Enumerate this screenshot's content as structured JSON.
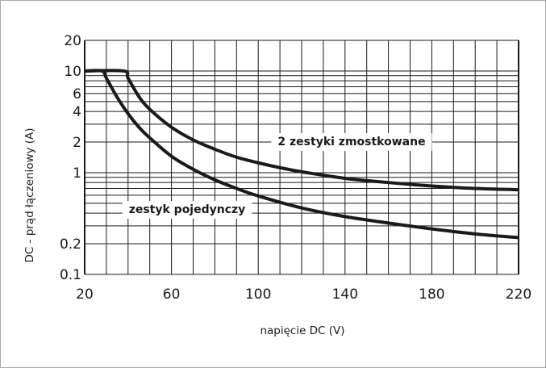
{
  "chart_data": {
    "type": "line",
    "title": "",
    "xlabel": "napięcie DC (V)",
    "ylabel": "DC - prąd łączeniowy (A)",
    "xlim": [
      20,
      220
    ],
    "ylim": [
      0.1,
      20
    ],
    "y_scale": "log",
    "grid": true,
    "x_ticks": [
      20,
      60,
      100,
      140,
      180,
      220
    ],
    "y_ticks": [
      0.1,
      0.2,
      1,
      2,
      4,
      6,
      10,
      20
    ],
    "x_tick_labels": [
      "20",
      "60",
      "100",
      "140",
      "180",
      "220"
    ],
    "y_tick_labels": [
      "0.1",
      "0.2",
      "1",
      "2",
      "4",
      "6",
      "10",
      "20"
    ],
    "series": [
      {
        "name": "zestyk pojedynczy",
        "x": [
          20,
          28,
          30,
          35,
          40,
          45,
          50,
          60,
          70,
          80,
          90,
          100,
          120,
          140,
          160,
          180,
          200,
          220
        ],
        "y": [
          10,
          10,
          8.5,
          5.5,
          3.8,
          2.8,
          2.2,
          1.45,
          1.08,
          0.85,
          0.7,
          0.59,
          0.45,
          0.37,
          0.32,
          0.28,
          0.25,
          0.23
        ]
      },
      {
        "name": "2 zestyki zmostkowane",
        "x": [
          20,
          38,
          40,
          45,
          50,
          60,
          70,
          80,
          90,
          100,
          110,
          120,
          140,
          160,
          180,
          200,
          220
        ],
        "y": [
          10,
          10,
          8.5,
          5.6,
          4.2,
          2.8,
          2.1,
          1.7,
          1.42,
          1.25,
          1.12,
          1.02,
          0.88,
          0.8,
          0.74,
          0.7,
          0.68
        ]
      }
    ]
  }
}
